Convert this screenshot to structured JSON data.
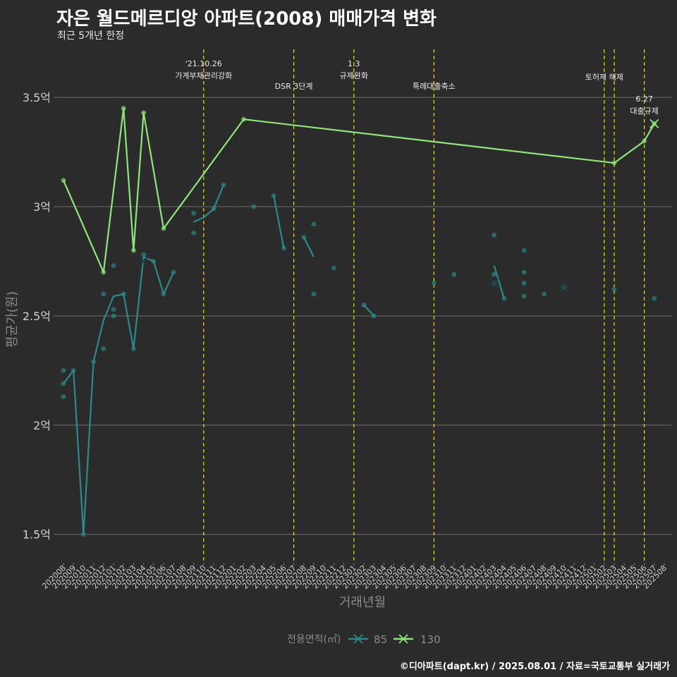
{
  "title": "자은 월드메르디앙 아파트(2008) 매매가격 변화",
  "subtitle": "최근 5개년 한정",
  "footer": "©디아파트(dapt.kr) / 2025.08.01 / 자료=국토교통부 실거래가",
  "colors": {
    "background": "#2b2b2b",
    "grid": "#6e6e6e",
    "event_line": "#e6e600",
    "series_85": "#2a8a8c",
    "series_130": "#8ee67a",
    "axis_text": "#cfcfcf",
    "axis_title": "#8a8a8a"
  },
  "chart_data": {
    "type": "line",
    "xlabel": "거래년월",
    "ylabel": "평균가(원)",
    "ylim": [
      1.37,
      3.72
    ],
    "y_ticks": [
      {
        "value": 1.5,
        "label": "1.5억"
      },
      {
        "value": 2.0,
        "label": "2억"
      },
      {
        "value": 2.5,
        "label": "2.5억"
      },
      {
        "value": 3.0,
        "label": "3억"
      },
      {
        "value": 3.5,
        "label": "3.5억"
      }
    ],
    "categories": [
      "202008",
      "202009",
      "202010",
      "202011",
      "202012",
      "202101",
      "202102",
      "202103",
      "202104",
      "202105",
      "202106",
      "202107",
      "202108",
      "202109",
      "202110",
      "202111",
      "202112",
      "202201",
      "202202",
      "202203",
      "202204",
      "202205",
      "202206",
      "202207",
      "202208",
      "202209",
      "202210",
      "202211",
      "202212",
      "202301",
      "202302",
      "202303",
      "202304",
      "202305",
      "202306",
      "202307",
      "202308",
      "202309",
      "202310",
      "202311",
      "202312",
      "202401",
      "202402",
      "202403",
      "202404",
      "202405",
      "202406",
      "202407",
      "202408",
      "202409",
      "202410",
      "202411",
      "202412",
      "202501",
      "202502",
      "202503",
      "202504",
      "202505",
      "202506",
      "202507",
      "202508"
    ],
    "legend": {
      "title": "전용면적(㎡)",
      "position": "bottom"
    },
    "events": [
      {
        "month": "202110",
        "label": "'21.10.26\n가계부채관리강화",
        "label_row": 0
      },
      {
        "month": "202207",
        "label": "DSR 3단계",
        "label_row": 2
      },
      {
        "month": "202301",
        "label": "1.3\n규제완화",
        "label_row": 0
      },
      {
        "month": "202309",
        "label": "특례대출축소",
        "label_row": 2
      },
      {
        "month": "202502",
        "label": "토허제 해제",
        "label_row": 1
      },
      {
        "month": "202503",
        "label": "",
        "label_row": 1
      },
      {
        "month": "202506",
        "label": "6.27\n대출규제",
        "label_row": 3
      }
    ],
    "series": [
      {
        "name": "85",
        "color": "#2a8a8c",
        "line": [
          [
            "202008",
            2.19
          ],
          [
            "202009",
            2.25
          ],
          [
            "202010",
            1.5
          ],
          [
            "202011",
            2.29
          ],
          [
            "202012",
            2.48
          ],
          [
            "202101",
            2.59
          ],
          [
            "202102",
            2.6
          ],
          [
            "202103",
            2.35
          ],
          [
            "202104",
            2.77
          ],
          [
            "202105",
            2.75
          ],
          [
            "202106",
            2.6
          ],
          [
            "202107",
            2.7
          ],
          [
            "202108",
            null
          ],
          [
            "202109",
            2.93
          ],
          [
            "202110",
            2.95
          ],
          [
            "202111",
            2.99
          ],
          [
            "202112",
            3.1
          ],
          [
            "202201",
            null
          ],
          [
            "202202",
            null
          ],
          [
            "202203",
            3.0
          ],
          [
            "202204",
            null
          ],
          [
            "202205",
            3.05
          ],
          [
            "202206",
            2.81
          ],
          [
            "202207",
            null
          ],
          [
            "202208",
            2.86
          ],
          [
            "202209",
            2.77
          ],
          [
            "202210",
            null
          ],
          [
            "202211",
            2.72
          ],
          [
            "202212",
            null
          ],
          [
            "202301",
            null
          ],
          [
            "202302",
            2.55
          ],
          [
            "202303",
            2.5
          ],
          [
            "202304",
            null
          ],
          [
            "202305",
            null
          ],
          [
            "202306",
            null
          ],
          [
            "202307",
            null
          ],
          [
            "202308",
            null
          ],
          [
            "202309",
            2.65
          ],
          [
            "202310",
            null
          ],
          [
            "202311",
            2.69
          ],
          [
            "202312",
            null
          ],
          [
            "202401",
            null
          ],
          [
            "202402",
            null
          ],
          [
            "202403",
            2.73
          ],
          [
            "202404",
            2.58
          ],
          [
            "202405",
            null
          ],
          [
            "202406",
            2.68
          ],
          [
            "202407",
            null
          ],
          [
            "202408",
            2.6
          ],
          [
            "202409",
            null
          ],
          [
            "202410",
            2.63
          ],
          [
            "202411",
            null
          ],
          [
            "202412",
            null
          ],
          [
            "202501",
            null
          ],
          [
            "202502",
            null
          ],
          [
            "202503",
            2.62
          ],
          [
            "202504",
            null
          ],
          [
            "202505",
            null
          ],
          [
            "202506",
            null
          ],
          [
            "202507",
            2.58
          ],
          [
            "202508",
            null
          ]
        ],
        "points": [
          [
            "202008",
            2.25
          ],
          [
            "202008",
            2.19
          ],
          [
            "202008",
            2.13
          ],
          [
            "202009",
            2.25
          ],
          [
            "202010",
            1.5
          ],
          [
            "202011",
            2.29
          ],
          [
            "202012",
            2.6
          ],
          [
            "202012",
            2.35
          ],
          [
            "202101",
            2.73
          ],
          [
            "202101",
            2.53
          ],
          [
            "202101",
            2.5
          ],
          [
            "202102",
            2.6
          ],
          [
            "202103",
            2.35
          ],
          [
            "202104",
            2.78
          ],
          [
            "202105",
            2.75
          ],
          [
            "202106",
            2.6
          ],
          [
            "202107",
            2.7
          ],
          [
            "202109",
            2.97
          ],
          [
            "202109",
            2.88
          ],
          [
            "202111",
            2.99
          ],
          [
            "202112",
            3.1
          ],
          [
            "202203",
            3.0
          ],
          [
            "202205",
            3.05
          ],
          [
            "202206",
            2.81
          ],
          [
            "202208",
            2.86
          ],
          [
            "202209",
            2.92
          ],
          [
            "202209",
            2.6
          ],
          [
            "202211",
            2.72
          ],
          [
            "202302",
            2.55
          ],
          [
            "202303",
            2.5
          ],
          [
            "202309",
            2.65
          ],
          [
            "202311",
            2.69
          ],
          [
            "202403",
            2.87
          ],
          [
            "202403",
            2.69
          ],
          [
            "202403",
            2.65
          ],
          [
            "202404",
            2.58
          ],
          [
            "202406",
            2.8
          ],
          [
            "202406",
            2.7
          ],
          [
            "202406",
            2.65
          ],
          [
            "202406",
            2.59
          ],
          [
            "202408",
            2.6
          ],
          [
            "202410",
            2.63
          ],
          [
            "202503",
            2.62
          ],
          [
            "202507",
            2.58
          ]
        ],
        "x_markers": [
          [
            "202104",
            2.75
          ],
          [
            "202403",
            2.65
          ],
          [
            "202410",
            2.63
          ]
        ]
      },
      {
        "name": "130",
        "color": "#8ee67a",
        "line": [
          [
            "202008",
            3.12
          ],
          [
            "202012",
            2.7
          ],
          [
            "202102",
            3.45
          ],
          [
            "202103",
            2.8
          ],
          [
            "202104",
            3.43
          ],
          [
            "202106",
            2.9
          ],
          [
            "202202",
            3.4
          ],
          [
            "202503",
            3.2
          ],
          [
            "202506",
            3.3
          ],
          [
            "202507",
            3.38
          ]
        ],
        "points": [
          [
            "202008",
            3.12
          ],
          [
            "202012",
            2.7
          ],
          [
            "202102",
            3.45
          ],
          [
            "202103",
            2.8
          ],
          [
            "202104",
            3.43
          ],
          [
            "202106",
            2.9
          ],
          [
            "202202",
            3.4
          ],
          [
            "202503",
            3.2
          ],
          [
            "202506",
            3.3
          ],
          [
            "202507",
            3.38
          ]
        ],
        "x_markers": [
          [
            "202507",
            3.38
          ]
        ]
      }
    ]
  }
}
